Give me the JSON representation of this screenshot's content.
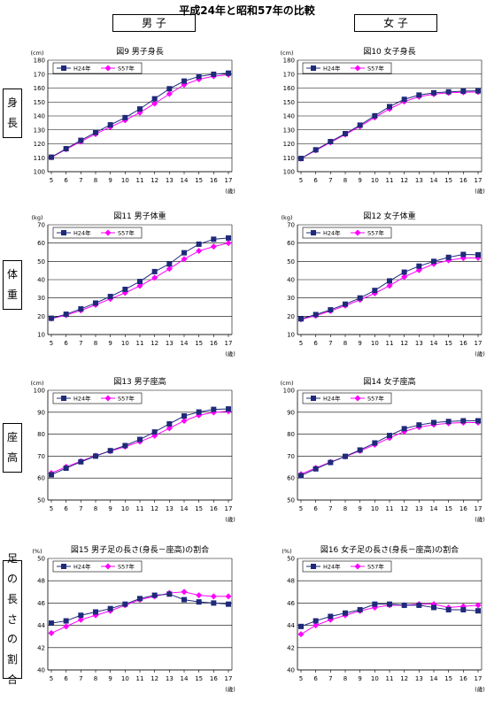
{
  "page": {
    "title": "平成24年と昭和57年の比較",
    "col_left": "男 子",
    "col_right": "女 子",
    "row_labels": [
      [
        "身",
        "長"
      ],
      [
        "体",
        "重"
      ],
      [
        "座",
        "高"
      ],
      [
        "足",
        "の",
        "長",
        "さ",
        "の",
        "割",
        "合"
      ]
    ]
  },
  "chart_data": [
    {
      "type": "line",
      "title": "図9 男子身長",
      "unit": "(cm)",
      "xunit": "(歳)",
      "x": [
        5,
        6,
        7,
        8,
        9,
        10,
        11,
        12,
        13,
        14,
        15,
        16,
        17
      ],
      "ylim": [
        100,
        180
      ],
      "yticks": [
        100,
        110,
        120,
        130,
        140,
        150,
        160,
        170,
        180
      ],
      "grid": true,
      "legend": "top-left",
      "series": [
        {
          "name": "H24年",
          "color": "#1f2a7a",
          "marker": "square",
          "values": [
            110.4,
            116.5,
            122.5,
            128.1,
            133.6,
            138.8,
            145.0,
            152.3,
            159.5,
            165.0,
            168.3,
            169.9,
            170.7
          ]
        },
        {
          "name": "S57年",
          "color": "#ff00ff",
          "marker": "diamond",
          "values": [
            110.3,
            116.1,
            121.6,
            127.0,
            132.1,
            136.9,
            142.4,
            148.9,
            155.8,
            162.4,
            166.3,
            168.5,
            169.6
          ]
        }
      ]
    },
    {
      "type": "line",
      "title": "図10 女子身長",
      "unit": "(cm)",
      "xunit": "(歳)",
      "x": [
        5,
        6,
        7,
        8,
        9,
        10,
        11,
        12,
        13,
        14,
        15,
        16,
        17
      ],
      "ylim": [
        100,
        180
      ],
      "yticks": [
        100,
        110,
        120,
        130,
        140,
        150,
        160,
        170,
        180
      ],
      "grid": true,
      "legend": "top-left",
      "series": [
        {
          "name": "H24年",
          "color": "#1f2a7a",
          "marker": "square",
          "values": [
            109.5,
            115.7,
            121.6,
            127.3,
            133.4,
            140.1,
            146.7,
            151.9,
            155.0,
            156.6,
            157.3,
            157.8,
            158.0
          ]
        },
        {
          "name": "S57年",
          "color": "#ff00ff",
          "marker": "diamond",
          "values": [
            109.4,
            115.3,
            121.0,
            126.7,
            132.5,
            138.9,
            145.0,
            150.3,
            153.8,
            155.6,
            156.6,
            157.0,
            157.2
          ]
        }
      ]
    },
    {
      "type": "line",
      "title": "図11 男子体重",
      "unit": "(kg)",
      "xunit": "(歳)",
      "x": [
        5,
        6,
        7,
        8,
        9,
        10,
        11,
        12,
        13,
        14,
        15,
        16,
        17
      ],
      "ylim": [
        10,
        70
      ],
      "yticks": [
        10,
        20,
        30,
        40,
        50,
        60,
        70
      ],
      "grid": true,
      "legend": "top-left",
      "series": [
        {
          "name": "H24年",
          "color": "#1f2a7a",
          "marker": "square",
          "values": [
            18.9,
            21.1,
            24.0,
            27.2,
            30.8,
            34.7,
            39.0,
            44.4,
            48.6,
            54.7,
            59.4,
            62.1,
            62.8
          ]
        },
        {
          "name": "S57年",
          "color": "#ff00ff",
          "marker": "diamond",
          "values": [
            18.7,
            20.6,
            23.2,
            26.2,
            29.5,
            32.8,
            36.6,
            41.0,
            45.9,
            51.2,
            55.7,
            58.1,
            60.0
          ]
        }
      ]
    },
    {
      "type": "line",
      "title": "図12 女子体重",
      "unit": "(kg)",
      "xunit": "(歳)",
      "x": [
        5,
        6,
        7,
        8,
        9,
        10,
        11,
        12,
        13,
        14,
        15,
        16,
        17
      ],
      "ylim": [
        10,
        70
      ],
      "yticks": [
        10,
        20,
        30,
        40,
        50,
        60,
        70
      ],
      "grid": true,
      "legend": "top-left",
      "series": [
        {
          "name": "H24年",
          "color": "#1f2a7a",
          "marker": "square",
          "values": [
            18.6,
            20.9,
            23.5,
            26.6,
            30.0,
            34.1,
            39.3,
            44.1,
            47.4,
            50.0,
            52.2,
            53.8,
            53.6
          ]
        },
        {
          "name": "S57年",
          "color": "#ff00ff",
          "marker": "diamond",
          "values": [
            18.3,
            20.3,
            22.9,
            25.8,
            29.0,
            32.5,
            36.7,
            41.5,
            45.2,
            48.6,
            50.6,
            51.8,
            51.9
          ]
        }
      ]
    },
    {
      "type": "line",
      "title": "図13 男子座高",
      "unit": "(cm)",
      "xunit": "(歳)",
      "x": [
        5,
        6,
        7,
        8,
        9,
        10,
        11,
        12,
        13,
        14,
        15,
        16,
        17
      ],
      "ylim": [
        50,
        100
      ],
      "yticks": [
        50,
        60,
        70,
        80,
        90,
        100
      ],
      "grid": true,
      "legend": "top-left",
      "series": [
        {
          "name": "H24年",
          "color": "#1f2a7a",
          "marker": "square",
          "values": [
            61.5,
            64.5,
            67.4,
            70.0,
            72.5,
            74.8,
            77.6,
            81.0,
            84.7,
            88.3,
            90.1,
            91.3,
            91.5
          ]
        },
        {
          "name": "S57年",
          "color": "#ff00ff",
          "marker": "diamond",
          "values": [
            62.3,
            65.1,
            67.7,
            70.2,
            72.3,
            74.3,
            76.6,
            79.3,
            82.7,
            86.1,
            88.6,
            89.9,
            90.4
          ]
        }
      ]
    },
    {
      "type": "line",
      "title": "図14 女子座高",
      "unit": "(cm)",
      "xunit": "(歳)",
      "x": [
        5,
        6,
        7,
        8,
        9,
        10,
        11,
        12,
        13,
        14,
        15,
        16,
        17
      ],
      "ylim": [
        50,
        100
      ],
      "yticks": [
        50,
        60,
        70,
        80,
        90,
        100
      ],
      "grid": true,
      "legend": "top-left",
      "series": [
        {
          "name": "H24年",
          "color": "#1f2a7a",
          "marker": "square",
          "values": [
            61.1,
            64.2,
            67.1,
            69.9,
            72.8,
            76.0,
            79.4,
            82.5,
            84.2,
            85.3,
            85.8,
            86.1,
            86.1
          ]
        },
        {
          "name": "S57年",
          "color": "#ff00ff",
          "marker": "diamond",
          "values": [
            61.8,
            64.6,
            67.3,
            69.8,
            72.4,
            75.2,
            78.3,
            81.2,
            83.2,
            84.3,
            85.0,
            85.3,
            85.3
          ]
        }
      ]
    },
    {
      "type": "line",
      "title": "図15 男子足の長さ(身長－座高)の割合",
      "unit": "(%)",
      "xunit": "(歳)",
      "x": [
        5,
        6,
        7,
        8,
        9,
        10,
        11,
        12,
        13,
        14,
        15,
        16,
        17
      ],
      "ylim": [
        40,
        50
      ],
      "yticks": [
        40,
        42,
        44,
        46,
        48,
        50
      ],
      "grid": true,
      "legend": "top-left",
      "series": [
        {
          "name": "H24年",
          "color": "#1f2a7a",
          "marker": "square",
          "values": [
            44.2,
            44.4,
            44.9,
            45.2,
            45.5,
            45.9,
            46.4,
            46.7,
            46.8,
            46.3,
            46.1,
            46.0,
            45.9
          ]
        },
        {
          "name": "S57年",
          "color": "#ff00ff",
          "marker": "diamond",
          "values": [
            43.3,
            43.9,
            44.5,
            44.9,
            45.3,
            45.8,
            46.3,
            46.6,
            46.9,
            47.0,
            46.7,
            46.6,
            46.6
          ]
        }
      ]
    },
    {
      "type": "line",
      "title": "図16 女子足の長さ(身長－座高)の割合",
      "unit": "(%)",
      "xunit": "(歳)",
      "x": [
        5,
        6,
        7,
        8,
        9,
        10,
        11,
        12,
        13,
        14,
        15,
        16,
        17
      ],
      "ylim": [
        40,
        50
      ],
      "yticks": [
        40,
        42,
        44,
        46,
        48,
        50
      ],
      "grid": true,
      "legend": "top-left",
      "series": [
        {
          "name": "H24年",
          "color": "#1f2a7a",
          "marker": "square",
          "values": [
            43.9,
            44.4,
            44.8,
            45.1,
            45.4,
            45.9,
            45.9,
            45.8,
            45.8,
            45.6,
            45.4,
            45.4,
            45.3
          ]
        },
        {
          "name": "S57年",
          "color": "#ff00ff",
          "marker": "diamond",
          "values": [
            43.2,
            44.0,
            44.5,
            44.9,
            45.3,
            45.6,
            45.8,
            45.8,
            45.9,
            45.9,
            45.6,
            45.7,
            45.8
          ]
        }
      ]
    }
  ]
}
